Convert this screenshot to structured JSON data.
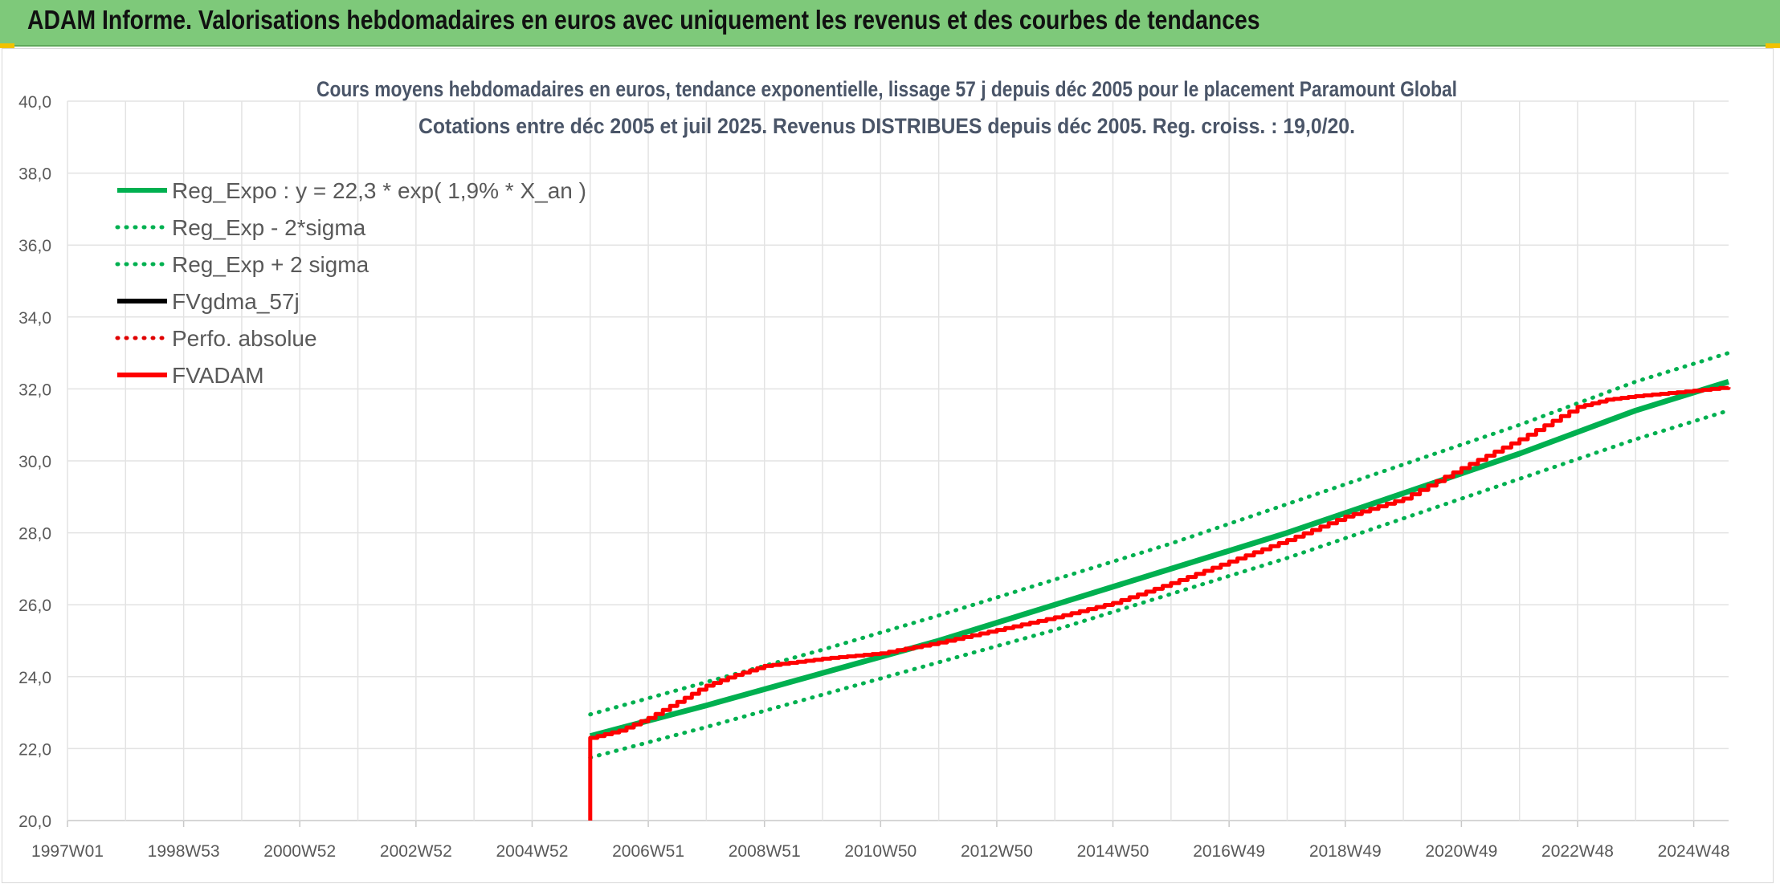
{
  "header": {
    "title": "ADAM Informe. Valorisations hebdomadaires en euros avec uniquement les revenus et des courbes de tendances",
    "background": "#7ec97a"
  },
  "chart_data": {
    "type": "line",
    "title": "Cours moyens hebdomadaires en euros, tendance exponentielle, lissage 57 j depuis déc 2005 pour le placement Paramount Global",
    "subtitle": "Cotations entre déc 2005 et juil 2025. Revenus DISTRIBUES depuis déc 2005. Reg. croiss. : 19,0/20.",
    "xlabel": "",
    "ylabel": "",
    "xlim": [
      1997.0,
      2025.6
    ],
    "ylim": [
      20,
      40
    ],
    "y_ticks": [
      "20,0",
      "22,0",
      "24,0",
      "26,0",
      "28,0",
      "30,0",
      "32,0",
      "34,0",
      "36,0",
      "38,0",
      "40,0"
    ],
    "x_ticks": [
      {
        "label": "1997W01",
        "x": 1997.0
      },
      {
        "label": "1998W53",
        "x": 1999.0
      },
      {
        "label": "2000W52",
        "x": 2001.0
      },
      {
        "label": "2002W52",
        "x": 2003.0
      },
      {
        "label": "2004W52",
        "x": 2005.0
      },
      {
        "label": "2006W51",
        "x": 2007.0
      },
      {
        "label": "2008W51",
        "x": 2009.0
      },
      {
        "label": "2010W50",
        "x": 2011.0
      },
      {
        "label": "2012W50",
        "x": 2013.0
      },
      {
        "label": "2014W50",
        "x": 2015.0
      },
      {
        "label": "2016W49",
        "x": 2017.0
      },
      {
        "label": "2018W49",
        "x": 2019.0
      },
      {
        "label": "2020W49",
        "x": 2021.0
      },
      {
        "label": "2022W48",
        "x": 2023.0
      },
      {
        "label": "2024W48",
        "x": 2025.0
      }
    ],
    "grid": true,
    "legend_position": "top-left",
    "series": [
      {
        "name": "Reg_Expo : y = 22,3 * exp( 1,9% *  X_an )",
        "color": "#00b050",
        "style": "solid",
        "x": [
          2006.0,
          2008.0,
          2010.0,
          2012.0,
          2014.0,
          2016.0,
          2018.0,
          2020.0,
          2022.0,
          2024.0,
          2025.6
        ],
        "y": [
          22.35,
          23.2,
          24.1,
          25.0,
          26.0,
          27.0,
          28.0,
          29.1,
          30.2,
          31.4,
          32.2
        ]
      },
      {
        "name": "Reg_Exp - 2*sigma",
        "color": "#00b050",
        "style": "dotted",
        "x": [
          2006.0,
          2008.0,
          2010.0,
          2012.0,
          2014.0,
          2016.0,
          2018.0,
          2020.0,
          2022.0,
          2024.0,
          2025.6
        ],
        "y": [
          21.75,
          22.6,
          23.5,
          24.4,
          25.3,
          26.3,
          27.3,
          28.4,
          29.5,
          30.6,
          31.4
        ]
      },
      {
        "name": "Reg_Exp + 2 sigma",
        "color": "#00b050",
        "style": "dotted",
        "x": [
          2006.0,
          2008.0,
          2010.0,
          2012.0,
          2014.0,
          2016.0,
          2018.0,
          2020.0,
          2022.0,
          2024.0,
          2025.6
        ],
        "y": [
          22.95,
          23.85,
          24.75,
          25.7,
          26.7,
          27.7,
          28.8,
          29.9,
          31.0,
          32.2,
          33.0
        ]
      },
      {
        "name": "FVgdma_57j",
        "color": "#000000",
        "style": "solid",
        "x": [],
        "y": []
      },
      {
        "name": "Perfo. absolue",
        "color": "#e00000",
        "style": "dotted",
        "x": [],
        "y": []
      },
      {
        "name": "FVADAM",
        "color": "#ff0000",
        "style": "solid",
        "x": [
          2006.0,
          2006.0,
          2006.5,
          2007.0,
          2007.5,
          2008.0,
          2008.5,
          2009.0,
          2010.0,
          2011.0,
          2012.0,
          2013.0,
          2014.0,
          2015.0,
          2016.0,
          2017.0,
          2018.0,
          2019.0,
          2020.0,
          2021.0,
          2022.0,
          2023.0,
          2023.5,
          2024.0,
          2025.0,
          2025.6
        ],
        "y": [
          20.0,
          22.3,
          22.5,
          22.85,
          23.3,
          23.75,
          24.05,
          24.3,
          24.5,
          24.65,
          24.95,
          25.3,
          25.65,
          26.05,
          26.6,
          27.2,
          27.8,
          28.45,
          28.95,
          29.8,
          30.6,
          31.5,
          31.7,
          31.8,
          31.95,
          32.05
        ]
      }
    ]
  }
}
